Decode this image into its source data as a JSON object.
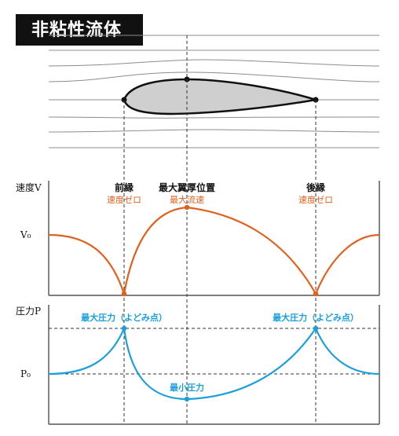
{
  "title": "非粘性流体",
  "colors": {
    "velocity": "#e0601e",
    "pressure": "#1a9fdc",
    "airfoil_fill": "#cfcfcf",
    "stroke": "#111111",
    "streamline": "#8c8c8c",
    "guide": "#333333"
  },
  "velocity_panel": {
    "axis_label": "速度V",
    "level_label": "V₀",
    "leading_edge_title": "前縁",
    "leading_edge_note": "速度ゼロ",
    "max_thickness_title": "最大翼厚位置",
    "max_thickness_note": "最大流速",
    "trailing_edge_title": "後縁",
    "trailing_edge_note": "速度ゼロ"
  },
  "pressure_panel": {
    "axis_label": "圧力P",
    "level_label": "P₀",
    "leading_edge_note": "最大圧力（よどみ点）",
    "trailing_edge_note": "最大圧力（よどみ点）",
    "min_note": "最小圧力"
  }
}
